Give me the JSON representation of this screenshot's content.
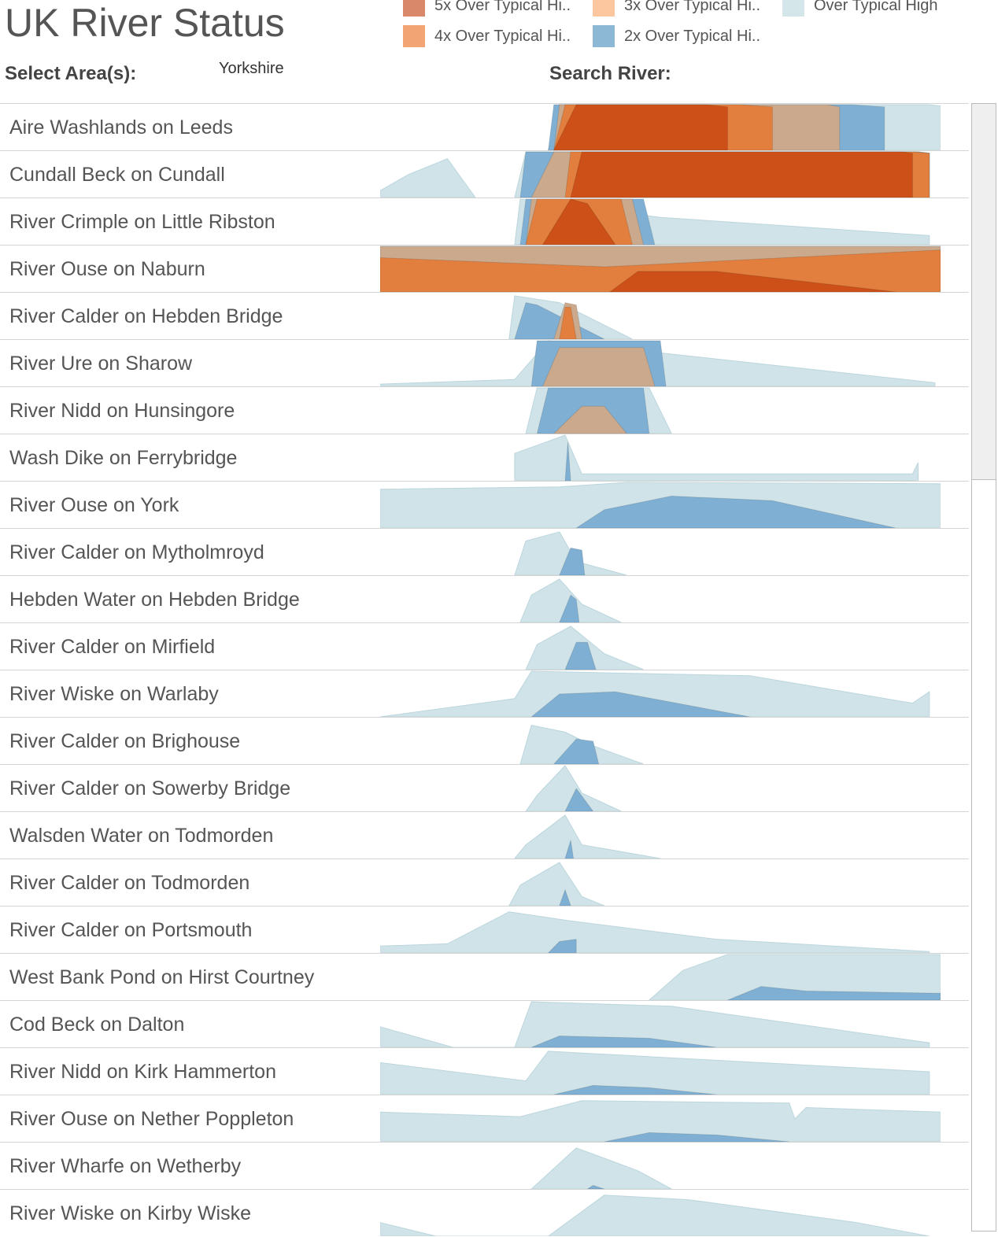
{
  "title": "UK River Status",
  "legend": [
    {
      "label": "5x Over Typical Hi..",
      "color": "#d9896a"
    },
    {
      "label": "3x Over Typical Hi..",
      "color": "#fcc79f"
    },
    {
      "label": "Over Typical High",
      "color": "#d4e6ea"
    },
    {
      "label": "4x Over Typical Hi..",
      "color": "#f2a474"
    },
    {
      "label": "2x Over Typical Hi..",
      "color": "#8cb8d6"
    }
  ],
  "filters": {
    "area_label": "Select Area(s):",
    "area_value": "Yorkshire",
    "search_label": "Search River:"
  },
  "colors": {
    "over": "#cfe3e8",
    "x2": "#7fb0d4",
    "x3": "#cba98c",
    "x4": "#e27f3e",
    "x5": "#cc5018"
  },
  "rows": [
    {
      "name": "Aire Washlands on Leeds",
      "bands": {
        "over": [
          [
            0.3,
            0,
            0.32,
            1,
            0.98,
            1,
            1.0,
            0.97
          ]
        ],
        "x2": [
          [
            0.3,
            0,
            0.31,
            1,
            0.84,
            1,
            0.9,
            0.95
          ]
        ],
        "x3": [
          [
            0.31,
            0,
            0.32,
            1,
            0.8,
            1,
            0.82,
            0.95
          ]
        ],
        "x4": [
          [
            0.31,
            0,
            0.33,
            1,
            0.64,
            1,
            0.7,
            0.95
          ]
        ],
        "x5": [
          [
            0.31,
            0,
            0.35,
            1,
            0.58,
            1,
            0.62,
            0.95
          ]
        ]
      }
    },
    {
      "name": "Cundall Beck on Cundall",
      "bands": {
        "over": [
          [
            0.0,
            0.15,
            0.05,
            0.5,
            0.12,
            0.85,
            0.17,
            0.0
          ],
          [
            0.24,
            0,
            0.26,
            1,
            0.96,
            1,
            0.98,
            0.97
          ]
        ],
        "x2": [
          [
            0.25,
            0,
            0.26,
            1,
            0.96,
            1,
            0.98,
            0.97
          ]
        ],
        "x3": [
          [
            0.27,
            0,
            0.31,
            1,
            0.96,
            1,
            0.98,
            0.97
          ]
        ],
        "x4": [
          [
            0.33,
            0,
            0.34,
            1,
            0.95,
            1,
            0.98,
            0.97
          ]
        ],
        "x5": [
          [
            0.34,
            0,
            0.36,
            1,
            0.93,
            1,
            0.95,
            0.97
          ]
        ]
      }
    },
    {
      "name": "River Crimple on Little Ribston",
      "bands": {
        "over": [
          [
            0.24,
            0,
            0.25,
            1,
            0.5,
            0.6,
            0.98,
            0.2
          ]
        ],
        "x2": [
          [
            0.25,
            0,
            0.26,
            1,
            0.47,
            1,
            0.49,
            0.0
          ]
        ],
        "x3": [
          [
            0.26,
            0,
            0.27,
            1,
            0.45,
            1,
            0.47,
            0.0
          ]
        ],
        "x4": [
          [
            0.26,
            0,
            0.28,
            1,
            0.43,
            1,
            0.45,
            0.0
          ]
        ],
        "x5": [
          [
            0.29,
            0,
            0.34,
            1,
            0.37,
            0.9,
            0.42,
            0.0
          ]
        ]
      }
    },
    {
      "name": "River Ouse on Naburn",
      "bands": {
        "over": [
          [
            0.0,
            0,
            0.0,
            1,
            1.0,
            1,
            1.0,
            0.97
          ]
        ],
        "x3": [
          [
            0.0,
            0,
            0.0,
            1,
            1.0,
            1,
            1.0,
            0.97
          ]
        ],
        "x4": [
          [
            0.0,
            0,
            0.0,
            0.75,
            0.4,
            0.55,
            1.0,
            0.92
          ]
        ],
        "x5": [
          [
            0.41,
            0,
            0.46,
            0.45,
            0.6,
            0.45,
            0.92,
            0.0
          ]
        ]
      }
    },
    {
      "name": "River Calder on Hebden Bridge",
      "bands": {
        "over": [
          [
            0.23,
            0,
            0.24,
            0.95,
            0.32,
            0.8,
            0.45,
            0.0
          ]
        ],
        "x2": [
          [
            0.24,
            0,
            0.26,
            0.8,
            0.28,
            0.75,
            0.4,
            0.0
          ]
        ],
        "x3": [
          [
            0.31,
            0,
            0.33,
            0.8,
            0.35,
            0.75,
            0.36,
            0.0
          ]
        ],
        "x4": [
          [
            0.32,
            0,
            0.33,
            0.7,
            0.34,
            0.7,
            0.35,
            0.0
          ]
        ]
      }
    },
    {
      "name": "River Ure on Sharow",
      "bands": {
        "over": [
          [
            0.0,
            0.05,
            0.24,
            0.15,
            0.3,
            1,
            0.99,
            0.08
          ]
        ],
        "x2": [
          [
            0.27,
            0,
            0.28,
            1,
            0.5,
            1,
            0.51,
            0.0
          ]
        ],
        "x3": [
          [
            0.29,
            0,
            0.32,
            0.85,
            0.47,
            0.85,
            0.49,
            0.0
          ]
        ]
      }
    },
    {
      "name": "River Nidd on Hunsingore",
      "bands": {
        "over": [
          [
            0.26,
            0,
            0.28,
            1,
            0.48,
            1,
            0.52,
            0.0
          ]
        ],
        "x2": [
          [
            0.28,
            0,
            0.3,
            1,
            0.47,
            1,
            0.48,
            0.0
          ]
        ],
        "x3": [
          [
            0.31,
            0,
            0.36,
            0.6,
            0.4,
            0.6,
            0.44,
            0.0
          ]
        ]
      }
    },
    {
      "name": "Wash Dike on Ferrybridge",
      "bands": {
        "over": [
          [
            0.24,
            0,
            0.24,
            0.6,
            0.33,
            1,
            0.36,
            0.15,
            0.95,
            0.15,
            0.96,
            0.4
          ]
        ],
        "x2": [
          [
            0.33,
            0,
            0.335,
            0.85,
            0.34,
            0.0
          ]
        ]
      }
    },
    {
      "name": "River Ouse on York",
      "bands": {
        "over": [
          [
            0.0,
            0,
            0.0,
            0.85,
            0.32,
            0.9,
            0.44,
            1,
            1.0,
            0.97
          ]
        ],
        "x2": [
          [
            0.35,
            0,
            0.4,
            0.4,
            0.52,
            0.7,
            0.7,
            0.6,
            0.92,
            0.0
          ]
        ]
      }
    },
    {
      "name": "River Calder on Mytholmroyd",
      "bands": {
        "over": [
          [
            0.24,
            0,
            0.26,
            0.75,
            0.32,
            0.95,
            0.35,
            0.3,
            0.44,
            0.0
          ]
        ],
        "x2": [
          [
            0.32,
            0,
            0.34,
            0.6,
            0.36,
            0.55,
            0.365,
            0.0
          ]
        ]
      }
    },
    {
      "name": "Hebden Water on Hebden Bridge",
      "bands": {
        "over": [
          [
            0.25,
            0,
            0.27,
            0.6,
            0.32,
            0.95,
            0.36,
            0.4,
            0.43,
            0.0
          ]
        ],
        "x2": [
          [
            0.32,
            0,
            0.34,
            0.6,
            0.35,
            0.5,
            0.355,
            0.0
          ]
        ]
      }
    },
    {
      "name": "River Calder on Mirfield",
      "bands": {
        "over": [
          [
            0.26,
            0,
            0.28,
            0.55,
            0.34,
            0.95,
            0.4,
            0.35,
            0.47,
            0.0
          ]
        ],
        "x2": [
          [
            0.33,
            0,
            0.35,
            0.6,
            0.37,
            0.6,
            0.385,
            0.0
          ]
        ]
      }
    },
    {
      "name": "River Wiske on Warlaby",
      "bands": {
        "over": [
          [
            0.0,
            0,
            0.24,
            0.4,
            0.27,
            1,
            0.66,
            0.9,
            0.95,
            0.3,
            0.98,
            0.55
          ]
        ],
        "x2": [
          [
            0.27,
            0,
            0.32,
            0.5,
            0.42,
            0.55,
            0.66,
            0.0
          ]
        ]
      }
    },
    {
      "name": "River Calder on Brighouse",
      "bands": {
        "over": [
          [
            0.25,
            0,
            0.27,
            0.85,
            0.33,
            0.7,
            0.38,
            0.4,
            0.47,
            0.0
          ]
        ],
        "x2": [
          [
            0.31,
            0,
            0.35,
            0.55,
            0.38,
            0.5,
            0.39,
            0.0
          ]
        ]
      }
    },
    {
      "name": "River Calder on Sowerby Bridge",
      "bands": {
        "over": [
          [
            0.26,
            0,
            0.28,
            0.35,
            0.33,
            1,
            0.36,
            0.4,
            0.43,
            0.0
          ]
        ],
        "x2": [
          [
            0.33,
            0,
            0.35,
            0.5,
            0.38,
            0.0
          ]
        ]
      }
    },
    {
      "name": "Walsden Water on Todmorden",
      "bands": {
        "over": [
          [
            0.24,
            0,
            0.26,
            0.3,
            0.33,
            0.95,
            0.36,
            0.3,
            0.5,
            0.0
          ]
        ],
        "x2": [
          [
            0.33,
            0,
            0.34,
            0.4,
            0.345,
            0.0
          ]
        ]
      }
    },
    {
      "name": "River Calder on Todmorden",
      "bands": {
        "over": [
          [
            0.23,
            0,
            0.25,
            0.45,
            0.32,
            0.95,
            0.36,
            0.2,
            0.4,
            0.0
          ]
        ],
        "x2": [
          [
            0.32,
            0,
            0.33,
            0.35,
            0.34,
            0.0
          ]
        ]
      }
    },
    {
      "name": "River Calder on Portsmouth",
      "bands": {
        "over": [
          [
            0.0,
            0,
            0.0,
            0.15,
            0.12,
            0.2,
            0.23,
            0.9,
            0.34,
            0.7,
            0.6,
            0.3,
            0.98,
            0.03
          ]
        ],
        "x2": [
          [
            0.3,
            0,
            0.32,
            0.25,
            0.35,
            0.3,
            0.35,
            0.0
          ]
        ]
      }
    },
    {
      "name": "West Bank Pond on Hirst Courtney",
      "bands": {
        "over": [
          [
            0.48,
            0,
            0.54,
            0.65,
            0.62,
            1,
            1.0,
            1,
            1.0,
            0.0
          ]
        ],
        "x2": [
          [
            0.62,
            0,
            0.68,
            0.3,
            0.76,
            0.2,
            1.0,
            0.15,
            1.0,
            0.0
          ]
        ]
      }
    },
    {
      "name": "Cod Beck on Dalton",
      "bands": {
        "over": [
          [
            0.0,
            0,
            0.0,
            0.45,
            0.13,
            0.0,
            0.24,
            0.0,
            0.27,
            1,
            0.52,
            0.9,
            0.98,
            0.1
          ]
        ],
        "x2": [
          [
            0.27,
            0,
            0.32,
            0.25,
            0.48,
            0.2,
            0.6,
            0.0
          ]
        ]
      }
    },
    {
      "name": "River Nidd on Kirk Hammerton",
      "bands": {
        "over": [
          [
            0.0,
            0,
            0.0,
            0.7,
            0.26,
            0.3,
            0.3,
            0.95,
            0.98,
            0.5,
            0.98,
            0.0
          ]
        ],
        "x2": [
          [
            0.31,
            0,
            0.38,
            0.2,
            0.48,
            0.15,
            0.6,
            0.0
          ]
        ]
      }
    },
    {
      "name": "River Ouse on Nether Poppleton",
      "bands": {
        "over": [
          [
            0.0,
            0,
            0.0,
            0.65,
            0.25,
            0.55,
            0.36,
            0.9,
            0.73,
            0.85,
            0.74,
            0.5,
            0.76,
            0.75,
            1.0,
            0.65,
            1.0,
            0.0
          ]
        ],
        "x2": [
          [
            0.4,
            0,
            0.48,
            0.2,
            0.6,
            0.15,
            0.73,
            0.0
          ]
        ]
      }
    },
    {
      "name": "River Wharfe on Wetherby",
      "bands": {
        "over": [
          [
            0.27,
            0,
            0.35,
            0.9,
            0.46,
            0.4,
            0.52,
            0.0
          ]
        ],
        "x2": [
          [
            0.37,
            0,
            0.38,
            0.08,
            0.4,
            0.0
          ]
        ]
      }
    },
    {
      "name": "River Wiske on Kirby Wiske",
      "bands": {
        "over": [
          [
            0.0,
            0,
            0.0,
            0.3,
            0.1,
            0.0,
            0.3,
            0.0,
            0.4,
            0.9,
            0.55,
            0.8,
            0.85,
            0.3,
            0.98,
            0.0
          ]
        ]
      }
    }
  ]
}
